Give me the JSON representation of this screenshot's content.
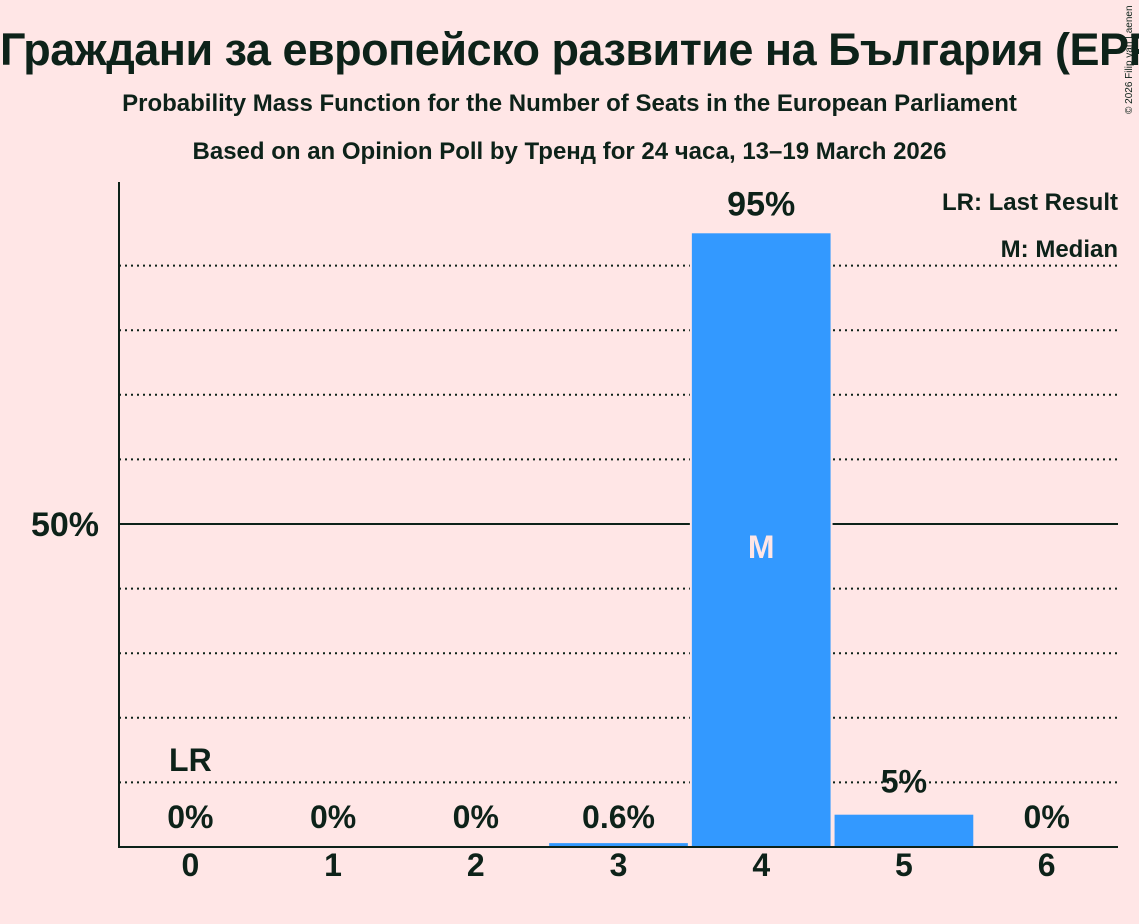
{
  "header": {
    "title": "Граждани за европейско развитие на България (EPP)",
    "subtitle": "Probability Mass Function for the Number of Seats in the European Parliament",
    "source_line": "Based on an Opinion Poll by Тренд for 24 часа, 13–19 March 2026",
    "copyright": "© 2026 Filip van Laenen"
  },
  "legend": {
    "lr": "LR: Last Result",
    "m": "M: Median"
  },
  "colors": {
    "background": "#ffe6e6",
    "bar": "#3399ff",
    "text": "#0d2219",
    "median_marker": "#ffe6e6"
  },
  "chart_data": {
    "type": "bar",
    "title": "Граждани за европейско развитие на България (EPP)",
    "subtitle": "Probability Mass Function for the Number of Seats in the European Parliament",
    "xlabel": "",
    "ylabel": "",
    "categories": [
      "0",
      "1",
      "2",
      "3",
      "4",
      "5",
      "6"
    ],
    "values": [
      0,
      0,
      0,
      0.6,
      95,
      5,
      0
    ],
    "value_labels": [
      "0%",
      "0%",
      "0%",
      "0.6%",
      "95%",
      "5%",
      "0%"
    ],
    "ylim": [
      0,
      100
    ],
    "y_ticks": [
      {
        "value": 50,
        "label": "50%"
      }
    ],
    "gridlines": [
      10,
      20,
      30,
      40,
      60,
      70,
      80,
      90
    ],
    "grid": true,
    "last_result": {
      "category": "0",
      "label": "LR"
    },
    "median": {
      "category": "4",
      "label": "M"
    },
    "legend_position": "top-right"
  }
}
